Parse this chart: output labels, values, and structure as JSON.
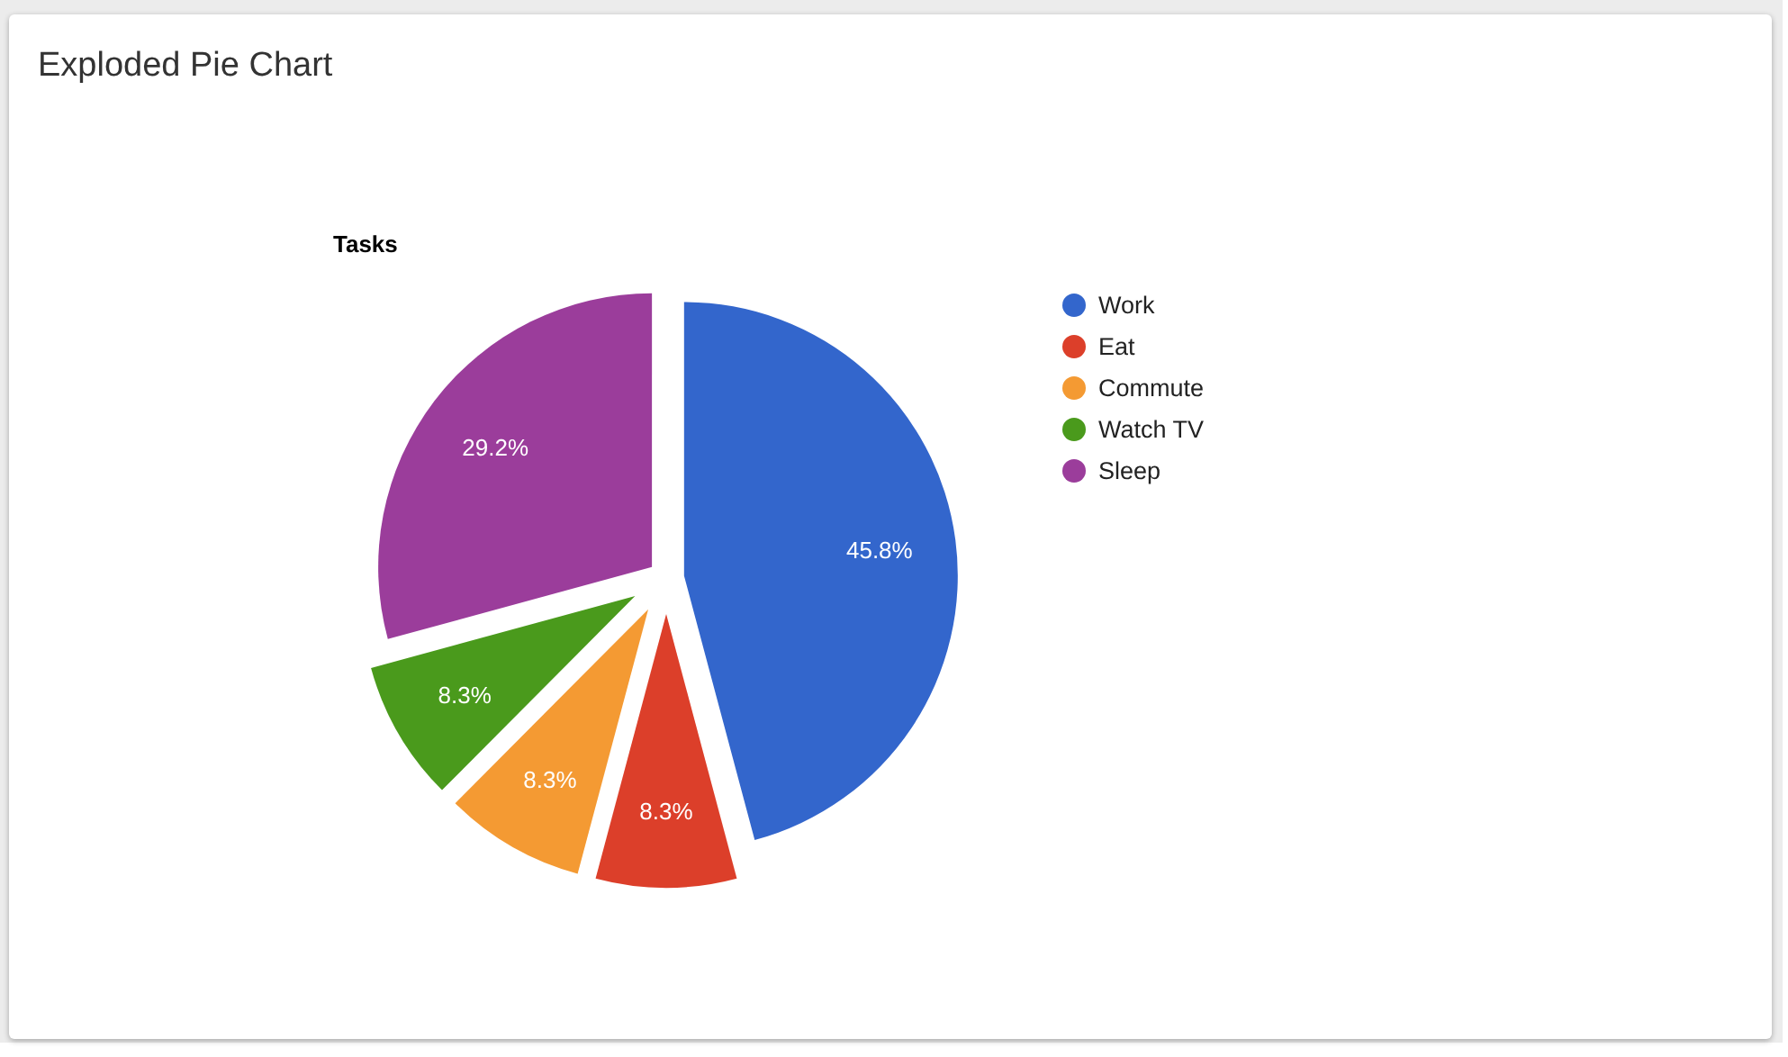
{
  "chart_data": {
    "type": "pie",
    "title": "Exploded Pie Chart",
    "subtitle": "Tasks",
    "categories": [
      "Work",
      "Eat",
      "Commute",
      "Watch TV",
      "Sleep"
    ],
    "values": [
      45.8,
      8.3,
      8.3,
      8.3,
      29.2
    ],
    "value_labels": [
      "45.8%",
      "8.3%",
      "8.3%",
      "8.3%",
      "29.2%"
    ],
    "colors": [
      "#3366cc",
      "#dc3f2a",
      "#f49a33",
      "#4a9a1c",
      "#9b3d9b"
    ],
    "legend": "right"
  }
}
